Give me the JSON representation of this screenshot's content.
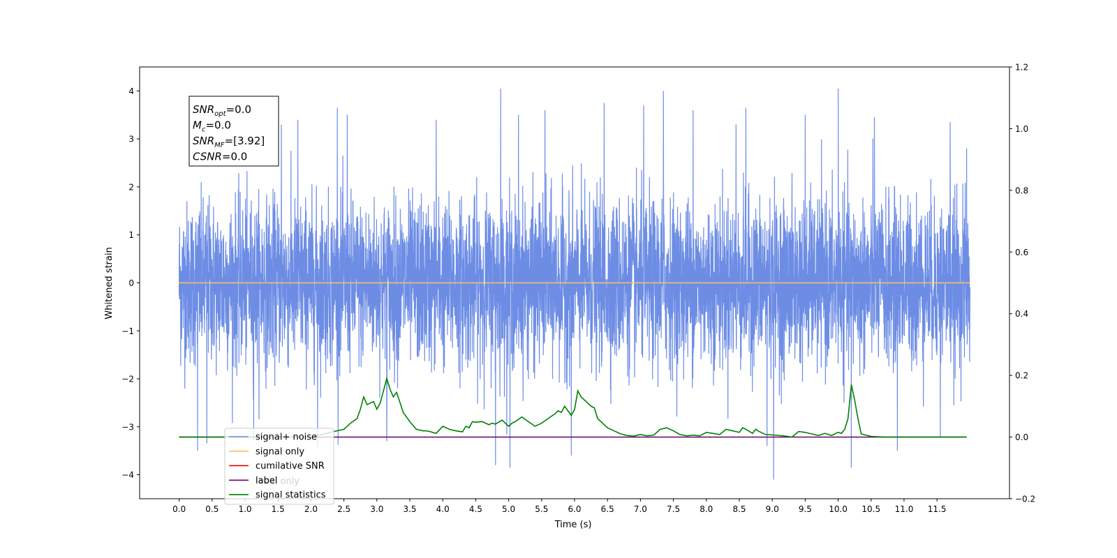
{
  "chart_data": {
    "type": "line",
    "xlabel": "Time (s)",
    "ylabel": "Whitened strain",
    "xlim": [
      -0.6,
      12.6
    ],
    "ylim": [
      -4.5,
      4.5
    ],
    "y2lim": [
      -0.2,
      1.2
    ],
    "xticks": [
      "0.0",
      "0.5",
      "1.0",
      "1.5",
      "2.0",
      "2.5",
      "3.0",
      "3.5",
      "4.0",
      "4.5",
      "5.0",
      "5.5",
      "6.0",
      "6.5",
      "7.0",
      "7.5",
      "8.0",
      "8.5",
      "9.0",
      "9.5",
      "10.0",
      "10.5",
      "11.0",
      "11.5"
    ],
    "yticks": [
      "4",
      "3",
      "2",
      "1",
      "0",
      "−1",
      "−2",
      "−3",
      "−4"
    ],
    "y2ticks": [
      "1.2",
      "1.0",
      "0.8",
      "0.6",
      "0.4",
      "0.2",
      "0.0",
      "−0.2"
    ],
    "annotation": {
      "lines": [
        {
          "sym": "SNR",
          "sub": "opt",
          "rest": "=0.0"
        },
        {
          "sym": "M",
          "sub": "c",
          "rest": "=0.0"
        },
        {
          "sym": "SNR",
          "sub": "MF",
          "rest": "=[3.92]"
        },
        {
          "sym": "CSNR",
          "sub": "",
          "rest": "=0.0"
        }
      ]
    },
    "legend": {
      "placement": "lower-left",
      "entries": [
        {
          "label": "signal+ noise",
          "color": "#6d8de5"
        },
        {
          "label": "signal only",
          "color": "#ffbf60"
        },
        {
          "label": "cumilative SNR",
          "color": "#e60000"
        },
        {
          "label": "label",
          "color": "#660066"
        },
        {
          "label": "signal statistics",
          "color": "#008000"
        }
      ],
      "overlap_text": "label only"
    },
    "series": [
      {
        "name": "signal+ noise",
        "axis": "left",
        "x_range": [
          0.0,
          12.0
        ],
        "typical_range": [
          -2.1,
          2.1
        ],
        "peaks": [
          {
            "x": 0.28,
            "y": -3.5
          },
          {
            "x": 0.42,
            "y": -3.35
          },
          {
            "x": 1.13,
            "y": -3.3
          },
          {
            "x": 1.55,
            "y": 3.3
          },
          {
            "x": 1.8,
            "y": 3.4
          },
          {
            "x": 2.1,
            "y": -3.45
          },
          {
            "x": 2.4,
            "y": 3.65
          },
          {
            "x": 2.55,
            "y": 3.5
          },
          {
            "x": 3.15,
            "y": -3.3
          },
          {
            "x": 3.9,
            "y": 3.4
          },
          {
            "x": 4.8,
            "y": -3.8
          },
          {
            "x": 4.88,
            "y": 4.05
          },
          {
            "x": 5.02,
            "y": -3.85
          },
          {
            "x": 5.15,
            "y": 3.5
          },
          {
            "x": 5.55,
            "y": 3.6
          },
          {
            "x": 5.95,
            "y": -3.6
          },
          {
            "x": 6.45,
            "y": 3.75
          },
          {
            "x": 7.05,
            "y": 3.7
          },
          {
            "x": 7.35,
            "y": 4.0
          },
          {
            "x": 7.8,
            "y": 3.6
          },
          {
            "x": 8.45,
            "y": 3.3
          },
          {
            "x": 8.6,
            "y": 3.65
          },
          {
            "x": 8.92,
            "y": -3.4
          },
          {
            "x": 9.02,
            "y": -4.1
          },
          {
            "x": 9.5,
            "y": 3.5
          },
          {
            "x": 10.0,
            "y": 4.05
          },
          {
            "x": 10.2,
            "y": -3.85
          },
          {
            "x": 10.55,
            "y": 3.45
          },
          {
            "x": 10.9,
            "y": -3.5
          },
          {
            "x": 11.55,
            "y": -3.2
          },
          {
            "x": 11.7,
            "y": 3.35
          },
          {
            "x": 11.95,
            "y": 2.8
          }
        ]
      },
      {
        "name": "signal only",
        "axis": "left",
        "x": [
          0.0,
          12.0
        ],
        "y": [
          0.0,
          0.0
        ]
      },
      {
        "name": "label",
        "axis": "right",
        "x": [
          0.0,
          11.95
        ],
        "y": [
          0.0,
          0.0
        ]
      },
      {
        "name": "signal statistics",
        "axis": "right",
        "x": [
          0.0,
          0.5,
          1.0,
          1.5,
          2.0,
          2.2,
          2.35,
          2.5,
          2.6,
          2.7,
          2.75,
          2.8,
          2.85,
          2.9,
          2.95,
          3.0,
          3.05,
          3.1,
          3.15,
          3.2,
          3.25,
          3.3,
          3.4,
          3.5,
          3.6,
          3.7,
          3.75,
          3.8,
          3.9,
          4.0,
          4.1,
          4.2,
          4.3,
          4.35,
          4.4,
          4.45,
          4.5,
          4.6,
          4.7,
          4.75,
          4.8,
          4.9,
          5.0,
          5.05,
          5.1,
          5.2,
          5.3,
          5.4,
          5.5,
          5.6,
          5.7,
          5.75,
          5.8,
          5.85,
          5.9,
          5.95,
          6.0,
          6.05,
          6.1,
          6.15,
          6.2,
          6.25,
          6.3,
          6.35,
          6.5,
          6.6,
          6.7,
          6.8,
          6.9,
          7.0,
          7.1,
          7.2,
          7.3,
          7.4,
          7.5,
          7.6,
          7.7,
          7.8,
          7.9,
          8.0,
          8.1,
          8.2,
          8.3,
          8.4,
          8.5,
          8.55,
          8.6,
          8.7,
          8.75,
          8.8,
          8.9,
          9.0,
          9.2,
          9.3,
          9.4,
          9.5,
          9.6,
          9.7,
          9.8,
          9.9,
          10.0,
          10.05,
          10.1,
          10.15,
          10.2,
          10.25,
          10.3,
          10.35,
          10.5,
          10.7,
          11.0,
          11.95
        ],
        "y": [
          0.0,
          0.0,
          0.0,
          0.0,
          0.0,
          0.01,
          0.018,
          0.025,
          0.045,
          0.06,
          0.09,
          0.13,
          0.105,
          0.11,
          0.115,
          0.09,
          0.11,
          0.15,
          0.19,
          0.155,
          0.13,
          0.145,
          0.08,
          0.05,
          0.025,
          0.02,
          0.02,
          0.018,
          0.012,
          0.035,
          0.025,
          0.02,
          0.017,
          0.035,
          0.03,
          0.05,
          0.048,
          0.05,
          0.04,
          0.045,
          0.042,
          0.055,
          0.035,
          0.045,
          0.05,
          0.065,
          0.05,
          0.035,
          0.045,
          0.06,
          0.075,
          0.085,
          0.08,
          0.1,
          0.085,
          0.07,
          0.09,
          0.15,
          0.13,
          0.12,
          0.11,
          0.1,
          0.095,
          0.06,
          0.03,
          0.02,
          0.01,
          0.005,
          0.003,
          0.008,
          0.004,
          0.006,
          0.025,
          0.03,
          0.02,
          0.008,
          0.004,
          0.006,
          0.004,
          0.015,
          0.012,
          0.008,
          0.025,
          0.02,
          0.015,
          0.03,
          0.025,
          0.012,
          0.025,
          0.018,
          0.008,
          0.007,
          0.003,
          0.0,
          0.018,
          0.015,
          0.01,
          0.005,
          0.012,
          0.005,
          0.015,
          0.012,
          0.025,
          0.06,
          0.17,
          0.12,
          0.06,
          0.01,
          0.002,
          0.0,
          0.0,
          0.0
        ]
      }
    ]
  }
}
